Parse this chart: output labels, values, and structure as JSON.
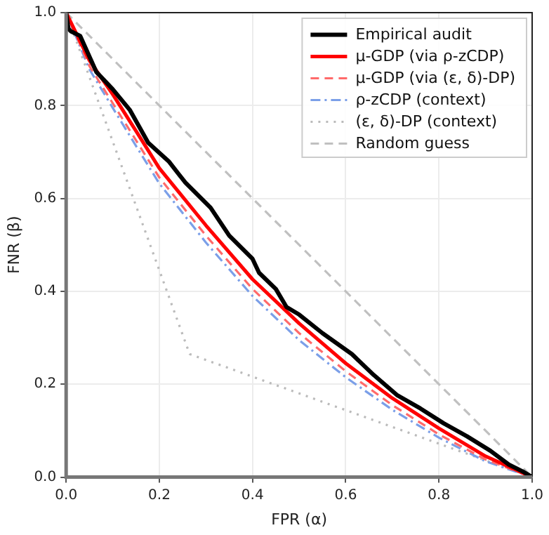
{
  "chart_data": {
    "type": "line",
    "xlabel": "FPR (α)",
    "ylabel": "FNR (β)",
    "xlim": [
      0,
      1
    ],
    "ylim": [
      0,
      1
    ],
    "xticks": [
      {
        "value": 0,
        "label": "0.0"
      },
      0.2,
      0.4,
      0.6,
      0.8,
      {
        "value": 1,
        "label": "1.0"
      }
    ],
    "yticks": [
      {
        "value": 0,
        "label": "0.0"
      },
      0.2,
      0.4,
      0.6,
      0.8,
      {
        "value": 1,
        "label": "1.0"
      }
    ],
    "grid": true,
    "legend": "top right",
    "marker": "none",
    "series": [
      {
        "name": "Empirical audit",
        "color": "#000000",
        "line_style": "solid",
        "x": [
          0,
          0.005,
          0.01,
          0.03,
          0.065,
          0.1,
          0.137,
          0.176,
          0.22,
          0.256,
          0.31,
          0.35,
          0.4,
          0.414,
          0.45,
          0.473,
          0.5,
          0.55,
          0.613,
          0.66,
          0.711,
          0.76,
          0.81,
          0.86,
          0.91,
          0.95,
          0.98,
          1
        ],
        "values": [
          1,
          0.965,
          0.96,
          0.95,
          0.872,
          0.835,
          0.79,
          0.72,
          0.68,
          0.634,
          0.58,
          0.52,
          0.47,
          0.44,
          0.405,
          0.366,
          0.35,
          0.31,
          0.265,
          0.22,
          0.176,
          0.148,
          0.116,
          0.088,
          0.057,
          0.027,
          0.012,
          0
        ]
      },
      {
        "name": "μ-GDP (via ρ-zCDP)",
        "color": "#ff0000",
        "line_style": "solid",
        "x": [
          0,
          0.05,
          0.1,
          0.15,
          0.2,
          0.3,
          0.4,
          0.5,
          0.6,
          0.7,
          0.8,
          0.9,
          1
        ],
        "values": [
          1,
          0.897,
          0.824,
          0.745,
          0.665,
          0.542,
          0.426,
          0.331,
          0.245,
          0.17,
          0.105,
          0.045,
          0
        ]
      },
      {
        "name": "μ-GDP (via (ε, δ)-DP)",
        "color": "#ff6a6a",
        "line_style": "dashed",
        "x": [
          0,
          0.05,
          0.1,
          0.15,
          0.2,
          0.3,
          0.4,
          0.5,
          0.6,
          0.7,
          0.8,
          0.9,
          1
        ],
        "values": [
          1,
          0.885,
          0.805,
          0.725,
          0.645,
          0.52,
          0.405,
          0.31,
          0.228,
          0.155,
          0.092,
          0.038,
          0
        ]
      },
      {
        "name": "ρ-zCDP (context)",
        "color": "#7b9fe8",
        "line_style": "dashdot",
        "x": [
          0,
          0.05,
          0.1,
          0.15,
          0.2,
          0.3,
          0.4,
          0.5,
          0.6,
          0.7,
          0.8,
          0.9,
          1
        ],
        "values": [
          1,
          0.878,
          0.795,
          0.713,
          0.632,
          0.505,
          0.39,
          0.295,
          0.215,
          0.145,
          0.085,
          0.034,
          0
        ]
      },
      {
        "name": "(ε, δ)-DP (context)",
        "color": "#bbbbbb",
        "line_style": "dotted",
        "x": [
          0,
          0.265,
          1
        ],
        "values": [
          1,
          0.265,
          0
        ]
      },
      {
        "name": "Random guess",
        "color": "#c0c0c0",
        "line_style": "dashed",
        "x": [
          0,
          1
        ],
        "values": [
          1,
          0
        ]
      }
    ]
  }
}
